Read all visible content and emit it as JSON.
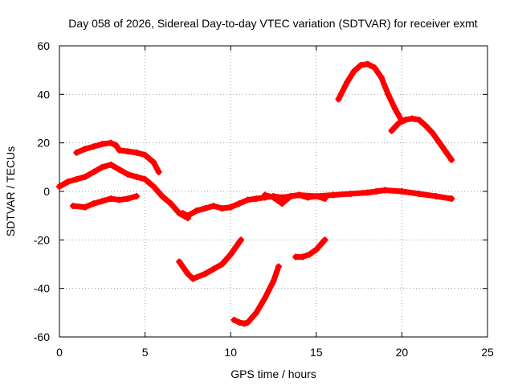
{
  "chart_data": {
    "type": "scatter",
    "title": "Day 058 of 2026, Sidereal Day-to-day VTEC variation (SDTVAR) for receiver exmt",
    "xlabel": "GPS time / hours",
    "ylabel": "SDTVAR / TECUs",
    "xlim": [
      0,
      25
    ],
    "ylim": [
      -60,
      60
    ],
    "xticks": [
      "0",
      "5",
      "10",
      "15",
      "20",
      "25"
    ],
    "yticks": [
      "-60",
      "-40",
      "-20",
      "0",
      "20",
      "40",
      "60"
    ],
    "grid": true,
    "series_color": "#ff0000",
    "series": [
      {
        "name": "track-1",
        "x": [
          1.0,
          1.5,
          2.0,
          2.5,
          3.0,
          3.3,
          3.5,
          4.0,
          4.5,
          5.0,
          5.5,
          5.8
        ],
        "y": [
          16,
          17.5,
          18.5,
          19.5,
          20,
          19,
          17,
          16.5,
          16,
          15,
          12,
          8
        ]
      },
      {
        "name": "track-2",
        "x": [
          0.0,
          0.5,
          1.0,
          1.5,
          2.0,
          2.5,
          3.0,
          3.5,
          4.0,
          4.5,
          5.0,
          5.5,
          6.0,
          6.5,
          7.0,
          7.5
        ],
        "y": [
          2,
          4,
          5,
          6,
          8,
          10,
          11,
          9,
          7,
          6,
          5,
          2,
          -2,
          -5,
          -9,
          -11
        ]
      },
      {
        "name": "track-3",
        "x": [
          0.8,
          1.5,
          2.0,
          2.5,
          3.0,
          3.5,
          4.0,
          4.5
        ],
        "y": [
          -6,
          -6.5,
          -5,
          -4,
          -3,
          -3.5,
          -3,
          -2
        ]
      },
      {
        "name": "track-4",
        "x": [
          7.0,
          7.5,
          7.8,
          8.5,
          9.0,
          9.5,
          10.0,
          10.3,
          10.6
        ],
        "y": [
          -29,
          -34,
          -36,
          -34,
          -32,
          -30,
          -26,
          -23,
          -20
        ]
      },
      {
        "name": "track-5",
        "x": [
          7.2,
          7.5,
          8.0,
          8.5,
          9.0,
          9.5,
          10.0,
          10.5,
          11.0,
          11.5,
          12.0,
          12.5,
          13.0,
          14.0,
          15.0,
          16.0,
          17.0,
          18.0,
          18.5,
          19.0,
          20.0,
          21.0,
          22.0,
          22.9
        ],
        "y": [
          -9,
          -10,
          -8,
          -7,
          -6,
          -7,
          -6.5,
          -5,
          -3.5,
          -3,
          -2.5,
          -2,
          -2.5,
          -1.5,
          -2,
          -1.5,
          -1,
          -0.5,
          0,
          0.5,
          0,
          -1,
          -2,
          -3
        ]
      },
      {
        "name": "track-6",
        "x": [
          12.0,
          12.5,
          13.0,
          13.5,
          14.0,
          14.5,
          15.0,
          15.5
        ],
        "y": [
          -1.5,
          -2.5,
          -5,
          -2,
          -1.5,
          -2.5,
          -2,
          -3
        ]
      },
      {
        "name": "track-7",
        "x": [
          10.2,
          10.5,
          10.8,
          11.0,
          11.5,
          12.0,
          12.5,
          12.8
        ],
        "y": [
          -53,
          -54,
          -54.5,
          -54,
          -50,
          -44,
          -37,
          -31
        ]
      },
      {
        "name": "track-8",
        "x": [
          13.8,
          14.2,
          14.6,
          15.0,
          15.5
        ],
        "y": [
          -27,
          -27,
          -26,
          -24,
          -20
        ]
      },
      {
        "name": "track-9",
        "x": [
          16.3,
          16.8,
          17.2,
          17.6,
          18.0,
          18.4,
          18.8,
          19.2,
          19.6,
          20.0
        ],
        "y": [
          38,
          45,
          49.5,
          52,
          52.5,
          51,
          47,
          40,
          34,
          29
        ]
      },
      {
        "name": "track-10",
        "x": [
          19.4,
          19.8,
          20.2,
          20.6,
          21.0,
          21.4,
          21.8,
          22.2,
          22.6,
          22.9
        ],
        "y": [
          25,
          28,
          29.5,
          30,
          29.5,
          27,
          24,
          20,
          16,
          13
        ]
      }
    ]
  }
}
